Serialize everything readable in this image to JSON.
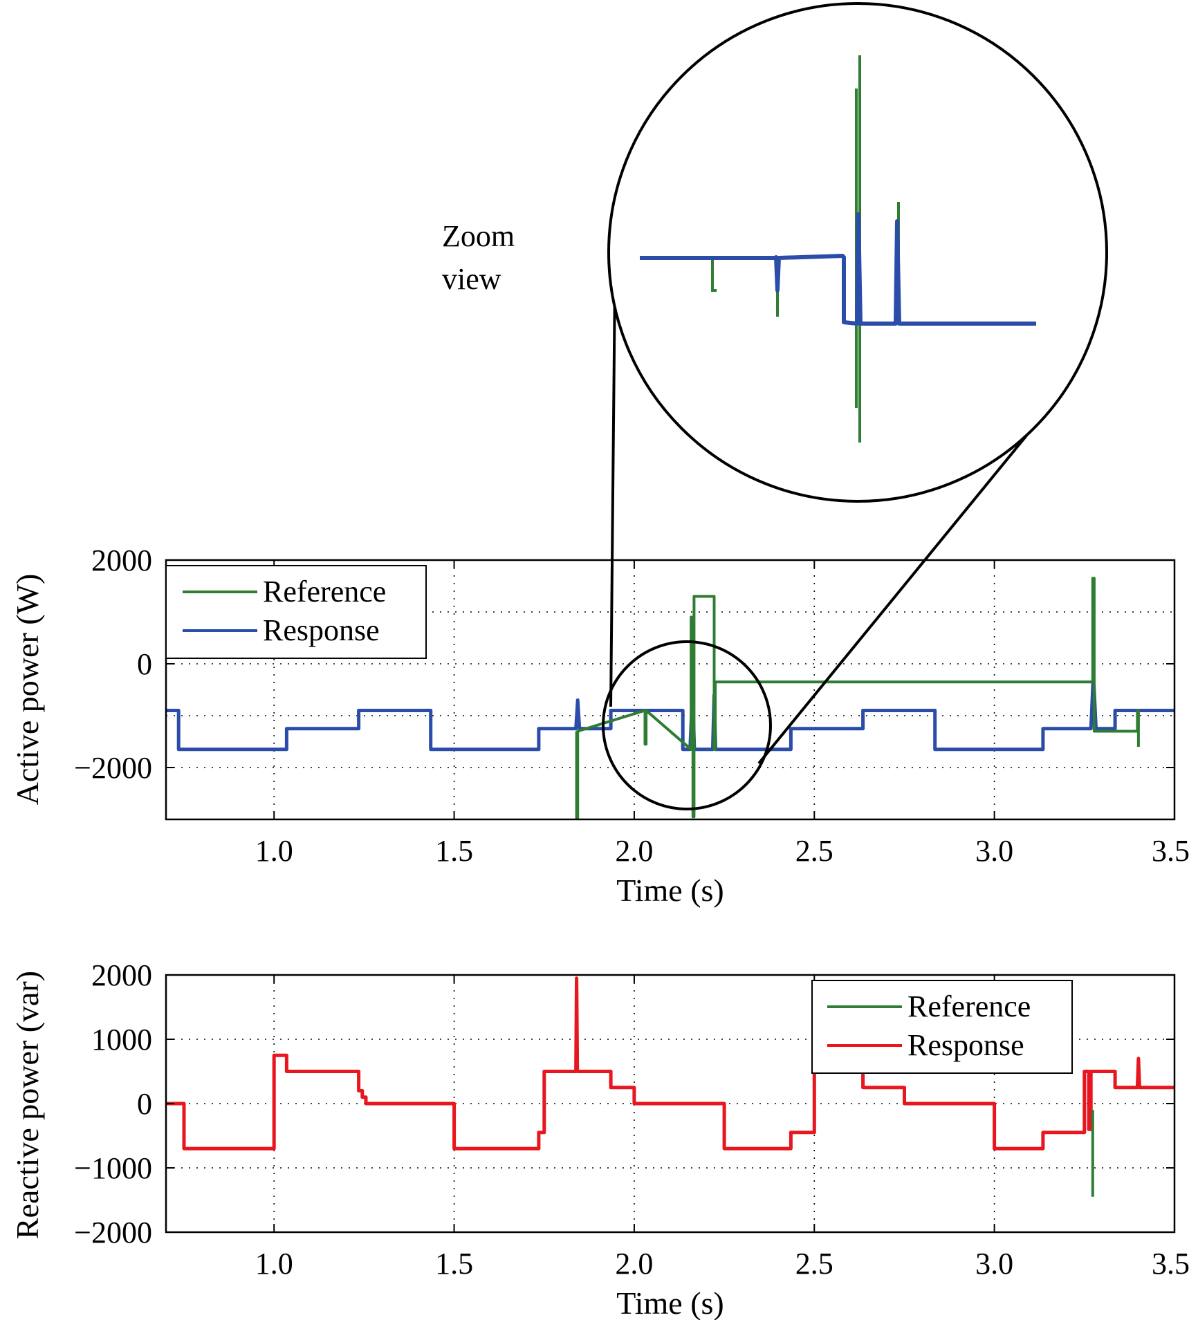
{
  "annotation": {
    "zoom_line1": "Zoom",
    "zoom_line2": "view"
  },
  "colors": {
    "reference": "#2e7d32",
    "response_active": "#2b4ca8",
    "response_reactive": "#e8161e"
  },
  "chart_data": [
    {
      "type": "line",
      "xlabel": "Time (s)",
      "ylabel": "Active power (W)",
      "xlim": [
        0.7,
        3.5
      ],
      "ylim": [
        -3000,
        2000
      ],
      "xticks": [
        1.0,
        1.5,
        2.0,
        2.5,
        3.0,
        3.5
      ],
      "xtick_labels": [
        "1.0",
        "1.5",
        "2.0",
        "2.5",
        "3.0",
        "3.5"
      ],
      "yticks": [
        2000,
        0,
        -2000
      ],
      "ytick_labels": [
        "2000",
        "0",
        "−2000"
      ],
      "grid": true,
      "legend": {
        "position": "top-left",
        "entries": [
          "Reference",
          "Response"
        ]
      },
      "series": [
        {
          "name": "Reference",
          "color": "#2e7d32",
          "x": [
            1.84,
            1.84,
            1.843,
            1.843,
            2.03,
            2.03,
            2.033,
            2.033,
            2.158,
            2.158,
            2.163,
            2.163,
            2.166,
            2.166,
            2.222,
            2.222,
            2.225,
            2.225,
            3.273,
            3.273,
            3.277,
            3.277,
            3.397,
            3.397,
            3.4,
            3.4
          ],
          "y": [
            -1300,
            -3000,
            -3000,
            -1300,
            -900,
            -1550,
            -1550,
            -900,
            -1650,
            900,
            900,
            -2950,
            -2950,
            1300,
            1300,
            -1650,
            -1650,
            -350,
            -350,
            1650,
            1650,
            -1300,
            -1300,
            -900,
            -900,
            -1600
          ]
        },
        {
          "name": "Response",
          "x": [
            0.7,
            0.735,
            0.735,
            1.035,
            1.035,
            1.235,
            1.235,
            1.435,
            1.435,
            1.735,
            1.735,
            1.838,
            1.843,
            1.848,
            1.935,
            1.935,
            2.135,
            2.135,
            2.155,
            2.162,
            2.167,
            2.218,
            2.222,
            2.226,
            2.435,
            2.435,
            2.635,
            2.635,
            2.835,
            2.835,
            3.135,
            3.135,
            3.268,
            3.275,
            3.282,
            3.335,
            3.335,
            3.5
          ],
          "y": [
            -900,
            -900,
            -1650,
            -1650,
            -1250,
            -1250,
            -900,
            -900,
            -1650,
            -1650,
            -1250,
            -1250,
            -700,
            -1250,
            -1250,
            -900,
            -900,
            -1650,
            -1650,
            -550,
            -1650,
            -1650,
            -600,
            -1650,
            -1650,
            -1250,
            -1250,
            -900,
            -900,
            -1650,
            -1650,
            -1250,
            -1250,
            -200,
            -1250,
            -1250,
            -900,
            -900
          ]
        }
      ]
    },
    {
      "type": "line",
      "xlabel": "Time (s)",
      "ylabel": "Reactive power (var)",
      "xlim": [
        0.7,
        3.5
      ],
      "ylim": [
        -2000,
        2000
      ],
      "xticks": [
        1.0,
        1.5,
        2.0,
        2.5,
        3.0,
        3.5
      ],
      "xtick_labels": [
        "1.0",
        "1.5",
        "2.0",
        "2.5",
        "3.0",
        "3.5"
      ],
      "yticks": [
        2000,
        1000,
        0,
        -1000,
        -2000
      ],
      "ytick_labels": [
        "2000",
        "1000",
        "0",
        "−1000",
        "−2000"
      ],
      "grid": true,
      "legend": {
        "position": "top-right",
        "entries": [
          "Reference",
          "Response"
        ]
      },
      "series": [
        {
          "name": "Reference",
          "color": "#2e7d32",
          "x": [
            3.273,
            3.273
          ],
          "y": [
            -100,
            -1450
          ]
        },
        {
          "name": "Response",
          "x": [
            0.7,
            0.75,
            0.75,
            1.0,
            1.0,
            1.035,
            1.035,
            1.235,
            1.235,
            1.245,
            1.245,
            1.255,
            1.255,
            1.5,
            1.5,
            1.735,
            1.735,
            1.75,
            1.75,
            1.838,
            1.84,
            1.842,
            1.935,
            1.935,
            2.0,
            2.0,
            2.25,
            2.25,
            2.435,
            2.435,
            2.5,
            2.5,
            2.635,
            2.635,
            2.75,
            2.75,
            3.0,
            3.0,
            3.135,
            3.135,
            3.25,
            3.25,
            3.262,
            3.262,
            3.268,
            3.268,
            3.275,
            3.275,
            3.335,
            3.335,
            3.397,
            3.4,
            3.403,
            3.5
          ],
          "y": [
            0,
            0,
            -700,
            -700,
            750,
            750,
            500,
            500,
            200,
            200,
            100,
            100,
            0,
            0,
            -700,
            -700,
            -450,
            -450,
            500,
            500,
            1950,
            500,
            500,
            250,
            250,
            0,
            0,
            -700,
            -700,
            -450,
            -450,
            500,
            500,
            250,
            250,
            0,
            0,
            -700,
            -700,
            -450,
            -450,
            500,
            500,
            -400,
            -400,
            500,
            500,
            500,
            500,
            250,
            250,
            700,
            250,
            250
          ]
        }
      ]
    }
  ]
}
